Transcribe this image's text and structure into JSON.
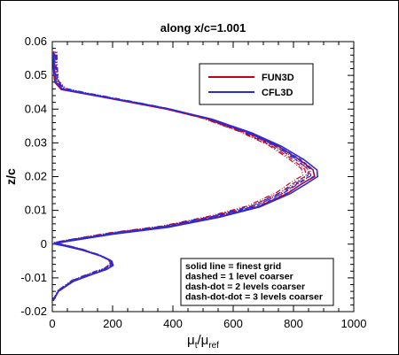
{
  "chart_data": {
    "type": "line",
    "title": "along x/c=1.001",
    "xlabel": {
      "base": "μ",
      "sub1": "t",
      "mid": "/μ",
      "sub2": "ref"
    },
    "ylabel": "z/c",
    "xlim": [
      0,
      1000
    ],
    "ylim": [
      -0.02,
      0.06
    ],
    "x_ticks": [
      "0",
      "200",
      "400",
      "600",
      "800",
      "1000"
    ],
    "y_ticks": [
      "-0.02",
      "-0.01",
      "0",
      "0.01",
      "0.02",
      "0.03",
      "0.04",
      "0.05",
      "0.06"
    ],
    "grid": false,
    "legend_position": "top-right",
    "series": [
      {
        "name": "FUN3D",
        "color": "#c0001a",
        "points": [
          [
            3,
            -0.0168
          ],
          [
            20,
            -0.014
          ],
          [
            70,
            -0.011
          ],
          [
            130,
            -0.009
          ],
          [
            180,
            -0.0075
          ],
          [
            200,
            -0.0063
          ],
          [
            195,
            -0.005
          ],
          [
            160,
            -0.0035
          ],
          [
            100,
            -0.0018
          ],
          [
            40,
            -0.0005
          ],
          [
            5,
            0.0001
          ],
          [
            60,
            0.001
          ],
          [
            200,
            0.003
          ],
          [
            380,
            0.005
          ],
          [
            550,
            0.008
          ],
          [
            680,
            0.011
          ],
          [
            780,
            0.015
          ],
          [
            830,
            0.018
          ],
          [
            870,
            0.02
          ],
          [
            865,
            0.022
          ],
          [
            820,
            0.025
          ],
          [
            750,
            0.029
          ],
          [
            650,
            0.033
          ],
          [
            520,
            0.037
          ],
          [
            380,
            0.04
          ],
          [
            230,
            0.0425
          ],
          [
            110,
            0.0445
          ],
          [
            30,
            0.0458
          ],
          [
            8,
            0.048
          ],
          [
            4,
            0.052
          ],
          [
            2,
            0.057
          ]
        ]
      },
      {
        "name": "CFL3D",
        "color": "#2b2bd8",
        "points": [
          [
            3,
            -0.0168
          ],
          [
            20,
            -0.014
          ],
          [
            70,
            -0.011
          ],
          [
            130,
            -0.009
          ],
          [
            180,
            -0.0075
          ],
          [
            202,
            -0.0063
          ],
          [
            197,
            -0.005
          ],
          [
            162,
            -0.0035
          ],
          [
            102,
            -0.0018
          ],
          [
            40,
            -0.0005
          ],
          [
            5,
            0.0001
          ],
          [
            62,
            0.001
          ],
          [
            205,
            0.003
          ],
          [
            385,
            0.005
          ],
          [
            555,
            0.008
          ],
          [
            688,
            0.011
          ],
          [
            790,
            0.015
          ],
          [
            845,
            0.018
          ],
          [
            880,
            0.02
          ],
          [
            878,
            0.022
          ],
          [
            835,
            0.025
          ],
          [
            760,
            0.029
          ],
          [
            660,
            0.033
          ],
          [
            530,
            0.037
          ],
          [
            390,
            0.04
          ],
          [
            240,
            0.0425
          ],
          [
            115,
            0.0445
          ],
          [
            35,
            0.0458
          ],
          [
            9,
            0.048
          ],
          [
            5,
            0.052
          ],
          [
            3,
            0.057
          ]
        ]
      }
    ],
    "notes": [
      "solid line = finest grid",
      "dashed = 1 level coarser",
      "dash-dot = 2 levels coarser",
      "dash-dot-dot = 3 levels coarser"
    ]
  }
}
